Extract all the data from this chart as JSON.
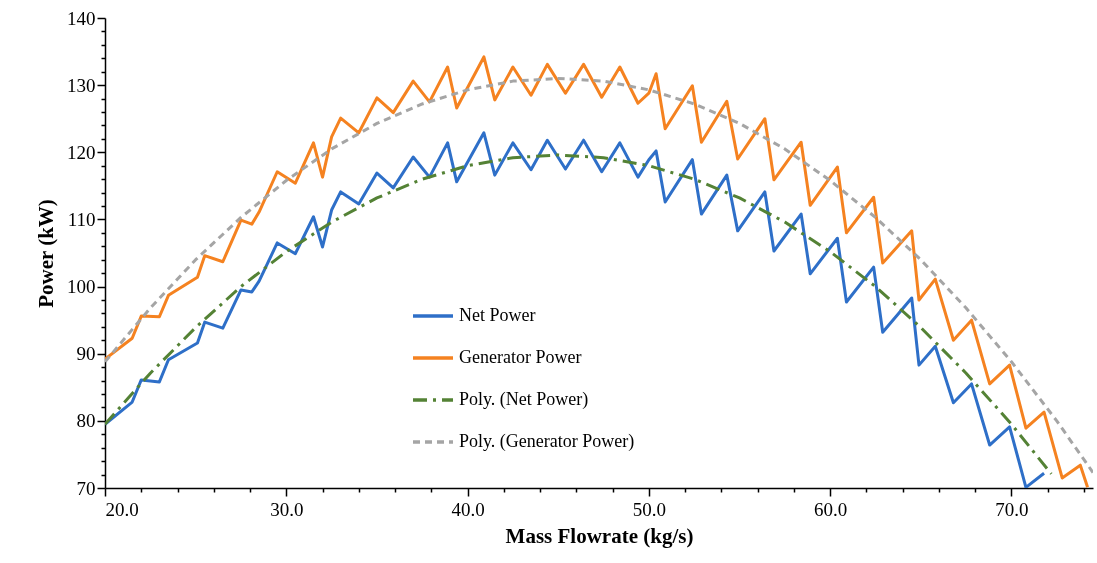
{
  "chart_data": {
    "type": "line",
    "xlabel": "Mass Flowrate (kg/s)",
    "ylabel": "Power (kW)",
    "xlim": [
      20,
      74.5
    ],
    "xticks": [
      {
        "value": 20,
        "label": "20.0"
      },
      {
        "value": 22,
        "label": null
      },
      {
        "value": 24,
        "label": null
      },
      {
        "value": 26,
        "label": null
      },
      {
        "value": 28,
        "label": null
      },
      {
        "value": 30,
        "label": "30.0"
      },
      {
        "value": 32,
        "label": null
      },
      {
        "value": 34,
        "label": null
      },
      {
        "value": 36,
        "label": null
      },
      {
        "value": 38,
        "label": null
      },
      {
        "value": 40,
        "label": "40.0"
      },
      {
        "value": 42,
        "label": null
      },
      {
        "value": 44,
        "label": null
      },
      {
        "value": 46,
        "label": null
      },
      {
        "value": 48,
        "label": null
      },
      {
        "value": 50,
        "label": "50.0"
      },
      {
        "value": 52,
        "label": null
      },
      {
        "value": 54,
        "label": null
      },
      {
        "value": 56,
        "label": null
      },
      {
        "value": 58,
        "label": null
      },
      {
        "value": 60,
        "label": "60.0"
      },
      {
        "value": 62,
        "label": null
      },
      {
        "value": 64,
        "label": null
      },
      {
        "value": 66,
        "label": null
      },
      {
        "value": 68,
        "label": null
      },
      {
        "value": 70,
        "label": "70.0"
      },
      {
        "value": 72,
        "label": null
      },
      {
        "value": 74,
        "label": null
      }
    ],
    "ylim": [
      70,
      140
    ],
    "yticks": [
      70,
      {
        "value": 72,
        "label": null
      },
      {
        "value": 74,
        "label": null
      },
      {
        "value": 76,
        "label": null
      },
      {
        "value": 78,
        "label": null
      },
      80,
      {
        "value": 82,
        "label": null
      },
      {
        "value": 84,
        "label": null
      },
      {
        "value": 86,
        "label": null
      },
      {
        "value": 88,
        "label": null
      },
      90,
      {
        "value": 92,
        "label": null
      },
      {
        "value": 94,
        "label": null
      },
      {
        "value": 96,
        "label": null
      },
      {
        "value": 98,
        "label": null
      },
      100,
      {
        "value": 102,
        "label": null
      },
      {
        "value": 104,
        "label": null
      },
      {
        "value": 106,
        "label": null
      },
      {
        "value": 108,
        "label": null
      },
      110,
      {
        "value": 112,
        "label": null
      },
      {
        "value": 114,
        "label": null
      },
      {
        "value": 116,
        "label": null
      },
      {
        "value": 118,
        "label": null
      },
      120,
      {
        "value": 122,
        "label": null
      },
      {
        "value": 124,
        "label": null
      },
      {
        "value": 126,
        "label": null
      },
      {
        "value": 128,
        "label": null
      },
      130,
      {
        "value": 132,
        "label": null
      },
      {
        "value": 134,
        "label": null
      },
      {
        "value": 136,
        "label": null
      },
      {
        "value": 138,
        "label": null
      },
      140
    ],
    "grid": false,
    "legend": "bottom",
    "marker": "none",
    "series": [
      {
        "name": "Net Power",
        "color": "#2e6fc8",
        "line_style": "solid",
        "x": [
          20.0,
          21.5,
          22.0,
          23.0,
          23.5,
          25.1,
          25.5,
          26.5,
          27.5,
          28.1,
          28.5,
          29.5,
          30.5,
          31.5,
          32.0,
          32.5,
          33.0,
          34.0,
          35.0,
          35.9,
          37.0,
          37.9,
          38.9,
          39.4,
          40.9,
          41.5,
          42.5,
          43.5,
          44.4,
          45.4,
          46.4,
          47.4,
          48.4,
          49.4,
          50.0,
          50.4,
          50.9,
          52.4,
          52.9,
          54.3,
          54.9,
          56.4,
          56.9,
          58.4,
          58.9,
          60.4,
          60.9,
          62.4,
          62.9,
          64.5,
          64.9,
          65.8,
          66.8,
          67.8,
          68.8,
          69.9,
          70.8,
          71.8
        ],
        "values": [
          79.5,
          82.8,
          86.1,
          85.8,
          89.1,
          91.6,
          94.7,
          93.8,
          99.5,
          99.2,
          100.8,
          106.5,
          104.9,
          110.4,
          105.9,
          111.4,
          114.1,
          112.3,
          116.9,
          114.7,
          119.3,
          116.3,
          121.4,
          115.6,
          122.9,
          116.6,
          121.4,
          117.4,
          121.8,
          117.5,
          121.8,
          117.1,
          121.4,
          116.3,
          118.9,
          120.2,
          112.6,
          118.9,
          110.8,
          116.6,
          108.3,
          114.1,
          105.3,
          110.8,
          101.9,
          107.2,
          97.7,
          102.9,
          93.2,
          98.3,
          88.3,
          91.1,
          82.7,
          85.5,
          76.4,
          79.1,
          70.1,
          72.2
        ]
      },
      {
        "name": "Generator Power",
        "color": "#f58220",
        "line_style": "solid",
        "x": [
          20.0,
          21.5,
          22.0,
          23.0,
          23.5,
          25.1,
          25.5,
          26.5,
          27.5,
          28.1,
          28.5,
          29.5,
          30.5,
          31.5,
          32.0,
          32.5,
          33.0,
          34.0,
          35.0,
          35.9,
          37.0,
          37.9,
          38.9,
          39.4,
          40.9,
          41.5,
          42.5,
          43.5,
          44.4,
          45.4,
          46.4,
          47.4,
          48.4,
          49.4,
          50.0,
          50.4,
          50.9,
          52.4,
          52.9,
          54.3,
          54.9,
          56.4,
          56.9,
          58.4,
          58.9,
          60.4,
          60.9,
          62.4,
          62.9,
          64.5,
          64.9,
          65.8,
          66.8,
          67.8,
          68.8,
          69.9,
          70.8,
          71.8,
          72.8,
          73.8,
          74.2
        ],
        "values": [
          89.2,
          92.3,
          95.6,
          95.5,
          98.7,
          101.4,
          104.6,
          103.7,
          109.9,
          109.3,
          111.1,
          117.1,
          115.4,
          121.4,
          116.3,
          122.3,
          125.1,
          122.9,
          128.1,
          125.9,
          130.6,
          127.5,
          132.7,
          126.6,
          134.2,
          127.8,
          132.7,
          128.5,
          133.1,
          128.8,
          133.1,
          128.2,
          132.7,
          127.3,
          128.8,
          131.7,
          123.5,
          129.9,
          121.5,
          127.6,
          119.0,
          125.0,
          115.9,
          121.5,
          112.1,
          117.8,
          108.0,
          113.3,
          103.5,
          108.3,
          98.0,
          101.1,
          92.0,
          95.0,
          85.5,
          88.3,
          78.9,
          81.3,
          71.5,
          73.4,
          70.1
        ]
      },
      {
        "name": "Poly. (Net Power)",
        "color": "#548235",
        "line_style": "dashdot",
        "x": [
          20,
          22.5,
          25,
          27.5,
          30,
          32.5,
          35,
          37.5,
          40,
          42.5,
          45,
          47.5,
          50,
          52.5,
          55,
          57.5,
          60,
          62.5,
          65,
          67.5,
          70,
          72.2
        ],
        "values": [
          79.5,
          87.1,
          93.9,
          100.0,
          105.2,
          109.6,
          113.2,
          116.0,
          118.0,
          119.2,
          119.6,
          119.2,
          118.0,
          116.0,
          113.2,
          109.6,
          105.2,
          100.0,
          93.9,
          87.1,
          79.5,
          72.1
        ]
      },
      {
        "name": "Poly. (Generator Power)",
        "color": "#a5a5a5",
        "line_style": "dashed",
        "x": [
          20,
          22.5,
          25,
          27.5,
          30,
          32.5,
          35,
          37.5,
          40,
          42.5,
          45,
          47.5,
          50,
          52.5,
          55,
          57.5,
          60,
          62.5,
          65,
          67.5,
          70,
          72.5,
          74.5
        ],
        "values": [
          88.8,
          96.8,
          104.0,
          110.3,
          115.8,
          120.5,
          124.3,
          127.2,
          129.3,
          130.6,
          131.0,
          130.6,
          129.3,
          127.2,
          124.3,
          120.5,
          115.8,
          110.3,
          104.0,
          96.8,
          88.8,
          80.0,
          72.3
        ]
      }
    ]
  }
}
